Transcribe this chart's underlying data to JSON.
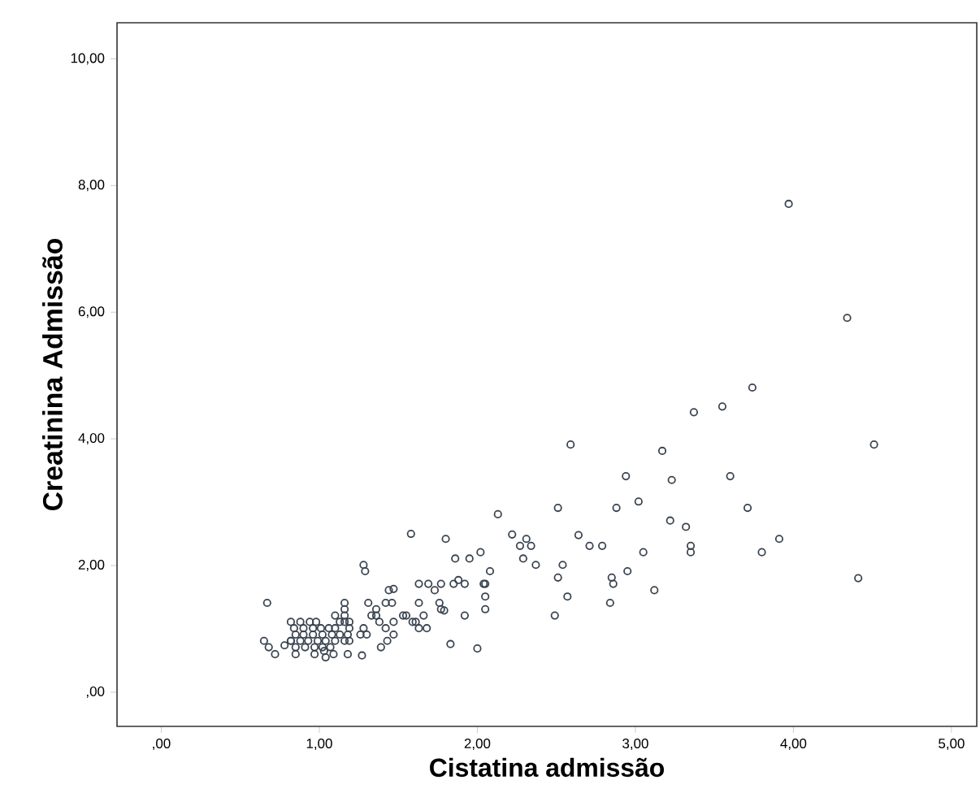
{
  "chart_data": {
    "type": "scatter",
    "xlabel": "Cistatina admissão",
    "ylabel": "Creatinina Admissão",
    "xlim": [
      -0.28,
      5.16
    ],
    "ylim": [
      -0.54,
      10.57
    ],
    "xticks": [
      {
        "value": 0,
        "label": ",00"
      },
      {
        "value": 1,
        "label": "1,00"
      },
      {
        "value": 2,
        "label": "2,00"
      },
      {
        "value": 3,
        "label": "3,00"
      },
      {
        "value": 4,
        "label": "4,00"
      },
      {
        "value": 5,
        "label": "5,00"
      }
    ],
    "yticks": [
      {
        "value": 0,
        "label": ",00"
      },
      {
        "value": 2,
        "label": "2,00"
      },
      {
        "value": 4,
        "label": "4,00"
      },
      {
        "value": 6,
        "label": "6,00"
      },
      {
        "value": 8,
        "label": "8,00"
      },
      {
        "value": 10,
        "label": "10,00"
      }
    ],
    "grid": false,
    "marker": "circle",
    "series": [
      {
        "color": "#3a4450",
        "x": [
          3.97,
          4.34,
          3.74,
          3.55,
          3.37,
          4.51,
          2.59,
          3.17,
          2.94,
          3.6,
          3.23,
          3.02,
          2.51,
          2.88,
          3.71,
          2.13,
          3.22,
          3.32,
          1.58,
          2.22,
          1.8,
          2.31,
          3.91,
          2.64,
          2.27,
          2.34,
          2.71,
          2.79,
          3.35,
          3.35,
          2.02,
          3.05,
          3.8,
          1.86,
          1.95,
          2.29,
          1.28,
          2.37,
          2.54,
          1.29,
          2.08,
          2.95,
          2.51,
          2.85,
          4.41,
          1.44,
          1.47,
          3.12,
          1.63,
          1.69,
          1.77,
          1.88,
          1.85,
          1.92,
          2.04,
          2.05,
          2.86,
          1.73,
          2.05,
          2.57,
          0.67,
          1.16,
          1.31,
          1.42,
          1.46,
          1.63,
          1.76,
          2.84,
          1.16,
          1.36,
          1.77,
          1.79,
          2.05,
          1.1,
          1.16,
          1.33,
          1.36,
          1.53,
          1.55,
          1.66,
          1.92,
          2.49,
          1.47,
          1.38,
          1.59,
          1.61,
          0.82,
          0.88,
          0.94,
          0.98,
          1.42,
          1.63,
          1.68,
          1.19,
          1.28,
          1.06,
          1.47,
          1.3,
          1.26,
          1.43,
          1.39,
          1.83,
          2.0,
          1.27,
          1.18,
          1.09,
          1.04,
          0.65,
          0.68,
          0.72,
          0.78,
          0.82,
          0.85,
          0.9,
          0.96,
          1.02,
          1.08,
          1.13,
          1.18,
          0.82,
          0.88,
          0.93,
          0.99,
          1.04,
          1.1,
          1.16,
          1.19,
          0.85,
          0.91,
          0.97,
          1.02,
          1.07,
          0.85,
          0.97,
          1.03,
          1.1,
          1.13,
          1.16,
          1.19,
          0.84,
          0.9,
          0.96,
          1.01
        ],
        "values": [
          7.71,
          5.91,
          4.81,
          4.51,
          4.42,
          3.91,
          3.91,
          3.81,
          3.41,
          3.41,
          3.35,
          3.01,
          2.91,
          2.91,
          2.91,
          2.81,
          2.71,
          2.61,
          2.5,
          2.49,
          2.42,
          2.42,
          2.42,
          2.48,
          2.31,
          2.31,
          2.31,
          2.31,
          2.31,
          2.21,
          2.21,
          2.21,
          2.21,
          2.11,
          2.11,
          2.11,
          2.01,
          2.01,
          2.01,
          1.91,
          1.91,
          1.91,
          1.81,
          1.81,
          1.8,
          1.61,
          1.63,
          1.61,
          1.71,
          1.71,
          1.71,
          1.77,
          1.71,
          1.71,
          1.71,
          1.71,
          1.71,
          1.61,
          1.51,
          1.51,
          1.41,
          1.41,
          1.41,
          1.41,
          1.41,
          1.41,
          1.41,
          1.41,
          1.31,
          1.31,
          1.31,
          1.29,
          1.31,
          1.21,
          1.21,
          1.21,
          1.21,
          1.21,
          1.21,
          1.21,
          1.21,
          1.21,
          1.11,
          1.11,
          1.11,
          1.11,
          1.11,
          1.11,
          1.11,
          1.11,
          1.01,
          1.01,
          1.01,
          1.01,
          1.01,
          1.01,
          0.91,
          0.91,
          0.91,
          0.81,
          0.71,
          0.76,
          0.69,
          0.58,
          0.6,
          0.6,
          0.55,
          0.81,
          0.71,
          0.6,
          0.74,
          0.81,
          0.91,
          0.91,
          0.91,
          0.91,
          0.91,
          0.91,
          0.91,
          0.81,
          0.81,
          0.81,
          0.81,
          0.81,
          0.81,
          0.81,
          0.81,
          0.71,
          0.71,
          0.71,
          0.71,
          0.71,
          0.6,
          0.6,
          0.65,
          1.01,
          1.11,
          1.11,
          1.11,
          1.01,
          1.01,
          1.01,
          1.01
        ]
      }
    ]
  }
}
